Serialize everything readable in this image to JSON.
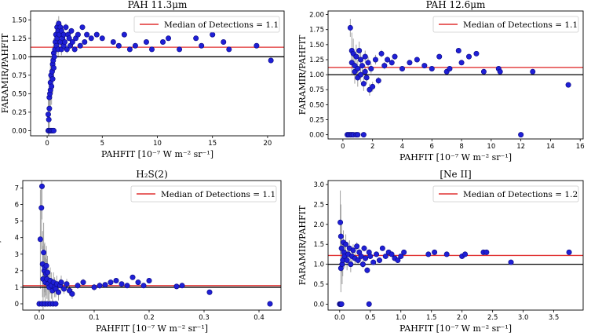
{
  "figure": {
    "xlabel": "PAHFIT [10⁻⁷ W m⁻² sr⁻¹]",
    "ylabel": "FARAMIR/PAHFIT"
  },
  "colors": {
    "points": "#1f1fd6",
    "point_edge": "#0a0a80",
    "median": "#e03030",
    "unity": "#000000",
    "errorbar": "#a0a0a0"
  },
  "chart_data": [
    {
      "type": "scatter",
      "title": "PAH 11.3μm",
      "xlabel": "PAHFIT [10⁻⁷ W m⁻² sr⁻¹]",
      "ylabel": "FARAMIR/PAHFIT",
      "xlim": [
        -1.5,
        21.5
      ],
      "ylim": [
        -0.07,
        1.62
      ],
      "xticks": [
        0,
        5,
        10,
        15,
        20
      ],
      "xtick_labels": [
        "0",
        "5",
        "10",
        "15",
        "20"
      ],
      "yticks": [
        0.0,
        0.25,
        0.5,
        0.75,
        1.0,
        1.25,
        1.5
      ],
      "ytick_labels": [
        "0.00",
        "0.25",
        "0.50",
        "0.75",
        "1.00",
        "1.25",
        "1.50"
      ],
      "legend": "Median of Detections = 1.1",
      "legend_loc": "upper-right",
      "median": 1.13,
      "unity": 1.0,
      "series": [
        {
          "name": "detections",
          "x": [
            0.1,
            0.15,
            0.2,
            0.2,
            0.25,
            0.3,
            0.3,
            0.35,
            0.4,
            0.45,
            0.5,
            0.5,
            0.55,
            0.6,
            0.6,
            0.65,
            0.7,
            0.75,
            0.8,
            0.85,
            0.9,
            0.9,
            1.0,
            1.0,
            1.05,
            1.1,
            1.2,
            1.2,
            1.3,
            1.3,
            1.4,
            1.5,
            1.5,
            1.6,
            1.7,
            1.8,
            1.9,
            2.0,
            2.1,
            2.2,
            2.3,
            2.5,
            2.6,
            2.8,
            3.0,
            3.2,
            3.4,
            3.6,
            4.0,
            4.5,
            5.0,
            6.0,
            6.5,
            7.0,
            7.5,
            8.0,
            9.0,
            9.5,
            10.5,
            11.0,
            12.0,
            13.5,
            14.0,
            15.0,
            16.0,
            16.5,
            19.0,
            20.3,
            0.1,
            0.2,
            0.3,
            0.4,
            0.5,
            0.6
          ],
          "y": [
            0.22,
            0.15,
            0.3,
            0.45,
            0.5,
            0.65,
            0.55,
            0.75,
            0.6,
            0.8,
            0.9,
            0.7,
            0.95,
            1.05,
            0.85,
            1.0,
            1.1,
            1.2,
            1.3,
            1.15,
            1.25,
            1.4,
            1.35,
            1.1,
            1.45,
            1.3,
            1.2,
            1.4,
            1.1,
            1.35,
            1.25,
            1.15,
            1.3,
            1.2,
            1.4,
            1.1,
            1.3,
            1.25,
            1.15,
            1.35,
            1.2,
            1.1,
            1.25,
            1.3,
            1.15,
            1.4,
            1.2,
            1.3,
            1.25,
            1.3,
            1.25,
            1.2,
            1.15,
            1.3,
            1.1,
            1.15,
            1.2,
            1.1,
            1.2,
            1.25,
            1.1,
            1.25,
            1.15,
            1.3,
            1.2,
            1.1,
            1.15,
            0.95,
            0.0,
            0.0,
            0.0,
            0.0,
            0.0,
            0.0
          ],
          "yerr": [
            0.3,
            0.3,
            0.35,
            0.3,
            0.3,
            0.25,
            0.3,
            0.25,
            0.25,
            0.2,
            0.2,
            0.2,
            0.2,
            0.2,
            0.15,
            0.2,
            0.15,
            0.15,
            0.15,
            0.1,
            0.1,
            0.1,
            0.1,
            0.1,
            0.1,
            0.08,
            0.08,
            0.08,
            0.08,
            0.08,
            0.06,
            0.06,
            0.06,
            0.05,
            0.05,
            0.05,
            0.05,
            0.04,
            0.04,
            0.04,
            0.04,
            0.04,
            0.03,
            0.03,
            0.03,
            0.03,
            0.03,
            0.03,
            0.03,
            0.02,
            0.02,
            0.02,
            0.02,
            0.02,
            0.02,
            0.02,
            0.02,
            0.02,
            0.02,
            0.02,
            0.02,
            0.02,
            0.02,
            0.02,
            0.02,
            0.02,
            0.02,
            0.02,
            0,
            0,
            0,
            0,
            0,
            0
          ]
        }
      ]
    },
    {
      "type": "scatter",
      "title": "PAH 12.6μm",
      "xlabel": "PAHFIT [10⁻⁷ W m⁻² sr⁻¹]",
      "ylabel": "FARAMIR/PAHFIT",
      "xlim": [
        -1.0,
        16.2
      ],
      "ylim": [
        -0.07,
        2.06
      ],
      "xticks": [
        0,
        2,
        4,
        6,
        8,
        10,
        12,
        14,
        16
      ],
      "xtick_labels": [
        "0",
        "2",
        "4",
        "6",
        "8",
        "10",
        "12",
        "14",
        "16"
      ],
      "yticks": [
        0.0,
        0.25,
        0.5,
        0.75,
        1.0,
        1.25,
        1.5,
        1.75,
        2.0
      ],
      "ytick_labels": [
        "0.00",
        "0.25",
        "0.50",
        "0.75",
        "1.00",
        "1.25",
        "1.50",
        "1.75",
        "2.00"
      ],
      "legend": "Median of Detections = 1.1",
      "legend_loc": "upper-right",
      "median": 1.12,
      "unity": 1.0,
      "series": [
        {
          "name": "detections",
          "x": [
            0.5,
            0.6,
            0.6,
            0.7,
            0.8,
            0.8,
            0.9,
            1.0,
            1.0,
            1.1,
            1.2,
            1.2,
            1.3,
            1.4,
            1.5,
            1.5,
            1.6,
            1.7,
            1.8,
            1.9,
            2.0,
            2.2,
            2.4,
            2.6,
            2.8,
            3.0,
            3.3,
            3.5,
            4.0,
            4.5,
            5.0,
            5.5,
            6.0,
            6.5,
            7.0,
            7.2,
            7.8,
            8.0,
            8.5,
            9.0,
            9.5,
            10.5,
            10.6,
            12.8,
            15.2,
            0.3,
            0.4,
            0.5,
            0.6,
            0.7,
            0.9,
            1.0,
            1.4,
            12.0
          ],
          "y": [
            1.78,
            1.4,
            1.2,
            1.35,
            1.15,
            1.05,
            1.3,
            1.1,
            0.95,
            1.4,
            1.25,
            1.0,
            1.15,
            0.85,
            1.3,
            1.05,
            0.95,
            1.2,
            0.75,
            1.1,
            0.8,
            1.25,
            0.9,
            1.35,
            1.15,
            1.25,
            1.2,
            1.3,
            1.1,
            1.2,
            1.25,
            1.15,
            1.1,
            1.3,
            1.05,
            1.1,
            1.4,
            1.2,
            1.3,
            1.35,
            1.05,
            1.1,
            1.05,
            1.05,
            0.83,
            0.0,
            0.0,
            0.0,
            0.0,
            0.0,
            0.0,
            0.0,
            0.0,
            0.0
          ],
          "yerr": [
            0.15,
            0.3,
            0.2,
            0.25,
            0.2,
            0.2,
            0.2,
            0.15,
            0.15,
            0.15,
            0.15,
            0.12,
            0.12,
            0.12,
            0.1,
            0.1,
            0.1,
            0.1,
            0.1,
            0.08,
            0.08,
            0.08,
            0.06,
            0.06,
            0.06,
            0.05,
            0.05,
            0.05,
            0.04,
            0.04,
            0.04,
            0.03,
            0.03,
            0.03,
            0.03,
            0.03,
            0.03,
            0.03,
            0.03,
            0.03,
            0.03,
            0.03,
            0.03,
            0.03,
            0.03,
            0,
            0,
            0,
            0,
            0,
            0,
            0,
            0,
            0
          ]
        }
      ]
    },
    {
      "type": "scatter",
      "title": "H₂S(2)",
      "xlabel": "PAHFIT [10⁻⁷ W m⁻² sr⁻¹]",
      "ylabel": "FARAMIR/PAHFIT",
      "xlim": [
        -0.03,
        0.44
      ],
      "ylim": [
        -0.38,
        7.45
      ],
      "xticks": [
        0.0,
        0.1,
        0.2,
        0.3,
        0.4
      ],
      "xtick_labels": [
        "0.0",
        "0.1",
        "0.2",
        "0.3",
        "0.4"
      ],
      "yticks": [
        0,
        1,
        2,
        3,
        4,
        5,
        6,
        7
      ],
      "ytick_labels": [
        "0",
        "1",
        "2",
        "3",
        "4",
        "5",
        "6",
        "7"
      ],
      "legend": "Median of Detections = 1.1",
      "legend_loc": "upper-right",
      "median": 1.1,
      "unity": 1.0,
      "series": [
        {
          "name": "detections",
          "x": [
            0.002,
            0.004,
            0.005,
            0.006,
            0.007,
            0.008,
            0.009,
            0.01,
            0.011,
            0.012,
            0.013,
            0.014,
            0.015,
            0.016,
            0.018,
            0.02,
            0.022,
            0.024,
            0.026,
            0.028,
            0.03,
            0.032,
            0.035,
            0.038,
            0.04,
            0.045,
            0.05,
            0.055,
            0.06,
            0.07,
            0.08,
            0.1,
            0.11,
            0.12,
            0.13,
            0.14,
            0.15,
            0.16,
            0.17,
            0.18,
            0.19,
            0.2,
            0.25,
            0.26,
            0.31,
            0.42,
            0.0,
            0.005,
            0.01,
            0.015,
            0.02,
            0.025,
            0.03
          ],
          "y": [
            3.9,
            5.8,
            7.1,
            2.4,
            1.5,
            3.1,
            2.0,
            2.2,
            1.3,
            1.8,
            2.3,
            1.5,
            1.9,
            1.2,
            1.0,
            1.4,
            1.1,
            0.8,
            1.3,
            1.0,
            0.9,
            1.2,
            0.7,
            1.1,
            1.3,
            0.9,
            1.2,
            0.8,
            0.6,
            1.1,
            1.3,
            1.0,
            1.1,
            1.15,
            1.3,
            1.4,
            1.2,
            1.1,
            1.6,
            1.3,
            1.1,
            1.4,
            1.05,
            1.1,
            0.7,
            0.0,
            0.0,
            0.0,
            0.0,
            0.0,
            0.0,
            0.0,
            0.0
          ],
          "yerr": [
            3.0,
            2.5,
            2.0,
            2.0,
            2.0,
            1.8,
            1.6,
            1.5,
            1.5,
            1.3,
            1.2,
            1.2,
            1.0,
            1.0,
            1.0,
            0.8,
            0.8,
            0.7,
            0.6,
            0.6,
            0.5,
            0.5,
            0.5,
            0.4,
            0.4,
            0.3,
            0.3,
            0.3,
            0.3,
            0.2,
            0.2,
            0.2,
            0.2,
            0.15,
            0.15,
            0.15,
            0.15,
            0.1,
            0.1,
            0.1,
            0.1,
            0.1,
            0.1,
            0.1,
            0.1,
            0.1,
            0,
            0,
            0,
            0,
            0,
            0,
            0
          ]
        }
      ]
    },
    {
      "type": "scatter",
      "title": "[Ne II]",
      "xlabel": "PAHFIT [10⁻⁷ W m⁻² sr⁻¹]",
      "ylabel": "FARAMIR/PAHFIT",
      "xlim": [
        -0.19,
        3.98
      ],
      "ylim": [
        -0.15,
        3.1
      ],
      "xticks": [
        0.0,
        0.5,
        1.0,
        1.5,
        2.0,
        2.5,
        3.0,
        3.5
      ],
      "xtick_labels": [
        "0.0",
        "0.5",
        "1.0",
        "1.5",
        "2.0",
        "2.5",
        "3.0",
        "3.5"
      ],
      "yticks": [
        0.0,
        0.5,
        1.0,
        1.5,
        2.0,
        2.5,
        3.0
      ],
      "ytick_labels": [
        "0.0",
        "0.5",
        "1.0",
        "1.5",
        "2.0",
        "2.5",
        "3.0"
      ],
      "legend": "Median of Detections = 1.2",
      "legend_loc": "upper-right",
      "median": 1.22,
      "unity": 1.0,
      "series": [
        {
          "name": "detections",
          "x": [
            0.01,
            0.02,
            0.02,
            0.03,
            0.04,
            0.05,
            0.06,
            0.07,
            0.08,
            0.1,
            0.12,
            0.14,
            0.16,
            0.18,
            0.2,
            0.22,
            0.25,
            0.28,
            0.3,
            0.32,
            0.35,
            0.38,
            0.4,
            0.42,
            0.45,
            0.48,
            0.5,
            0.55,
            0.6,
            0.65,
            0.7,
            0.75,
            0.8,
            0.85,
            0.9,
            0.95,
            1.0,
            1.05,
            1.45,
            1.55,
            1.75,
            2.0,
            2.05,
            2.35,
            2.4,
            2.8,
            3.75,
            0.0,
            0.01,
            0.02,
            0.03,
            0.48
          ],
          "y": [
            2.05,
            1.7,
            0.9,
            1.4,
            1.0,
            1.1,
            1.55,
            1.3,
            1.2,
            1.5,
            1.1,
            1.25,
            1.4,
            1.0,
            1.2,
            1.35,
            1.15,
            1.45,
            1.1,
            1.3,
            1.2,
            1.0,
            1.4,
            1.15,
            0.85,
            1.3,
            1.2,
            1.05,
            1.25,
            1.1,
            1.4,
            1.2,
            1.3,
            1.25,
            1.15,
            1.1,
            1.2,
            1.3,
            1.25,
            1.3,
            1.25,
            1.2,
            1.25,
            1.3,
            1.3,
            1.05,
            1.3,
            0.0,
            0.0,
            0.0,
            0.0,
            0.0
          ],
          "yerr": [
            0.8,
            0.8,
            0.6,
            0.6,
            0.5,
            0.4,
            0.3,
            0.3,
            0.3,
            0.25,
            0.25,
            0.2,
            0.2,
            0.2,
            0.15,
            0.15,
            0.15,
            0.1,
            0.1,
            0.1,
            0.1,
            0.1,
            0.08,
            0.08,
            0.08,
            0.08,
            0.06,
            0.06,
            0.06,
            0.06,
            0.05,
            0.05,
            0.05,
            0.05,
            0.05,
            0.04,
            0.04,
            0.04,
            0.03,
            0.03,
            0.03,
            0.03,
            0.03,
            0.03,
            0.03,
            0.03,
            0.03,
            0,
            0,
            0,
            0,
            0
          ]
        }
      ]
    }
  ]
}
